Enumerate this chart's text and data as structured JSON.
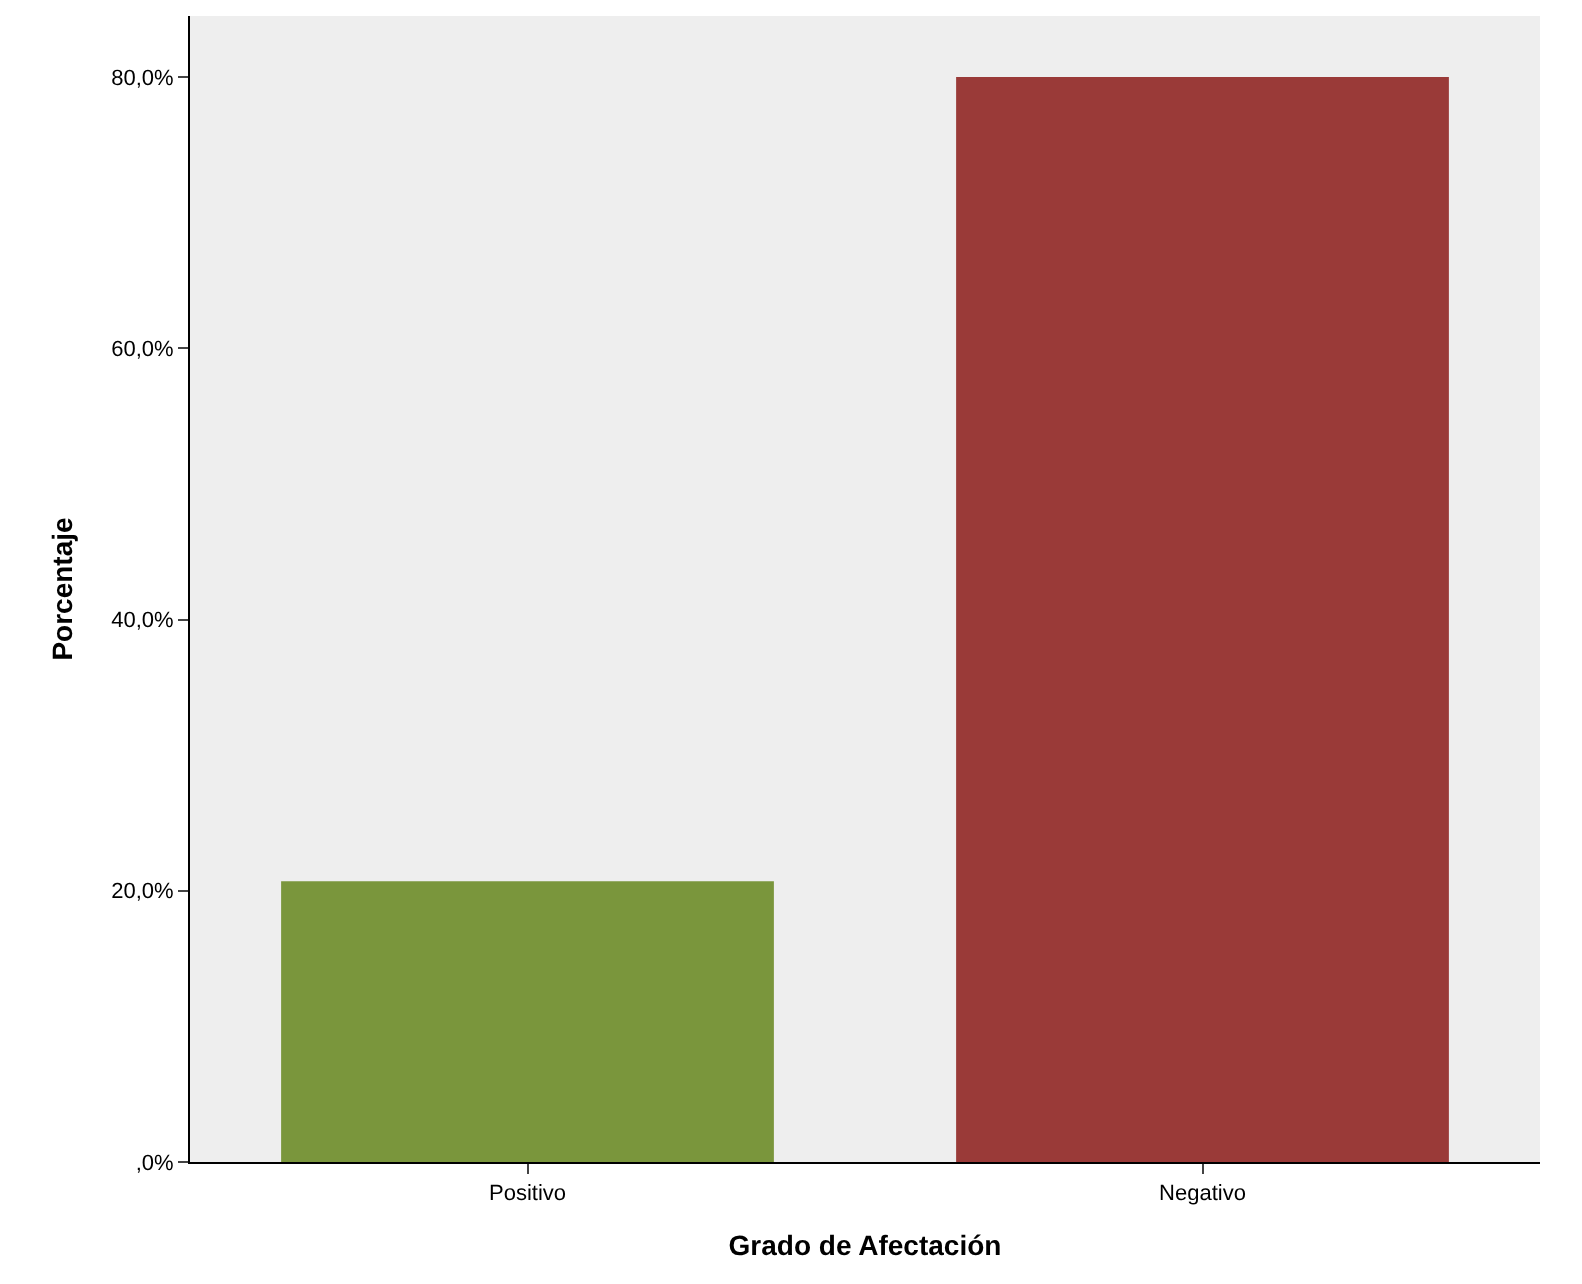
{
  "chart_data": {
    "type": "bar",
    "xlabel": "Grado de Afectación",
    "ylabel": "Porcentaje",
    "categories": [
      "Positivo",
      "Negativo"
    ],
    "values": [
      20.7,
      80
    ],
    "colors": [
      "#7a963c",
      "#9a3a38"
    ],
    "ylim": [
      0,
      84.5
    ],
    "yticks": [
      {
        "value": 0,
        "label": ",0%"
      },
      {
        "value": 20,
        "label": "20,0%"
      },
      {
        "value": 40,
        "label": "40,0%"
      },
      {
        "value": 60,
        "label": "60,0%"
      },
      {
        "value": 80,
        "label": "80,0%"
      }
    ],
    "grid": false
  }
}
